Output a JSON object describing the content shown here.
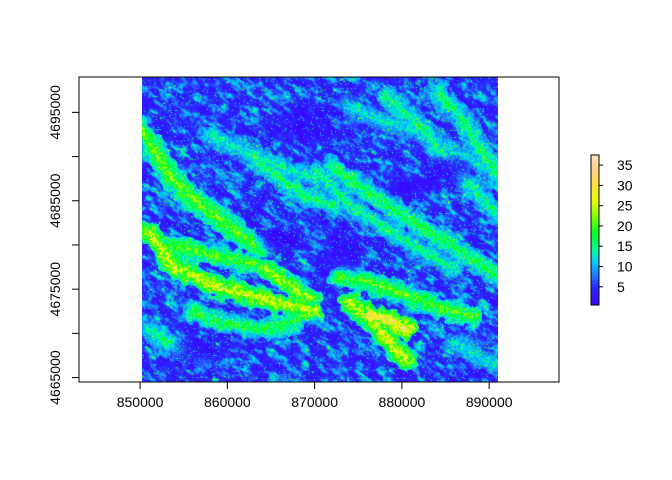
{
  "chart_data": {
    "type": "heatmap",
    "title": "",
    "xlabel": "",
    "ylabel": "",
    "xlim": [
      843000,
      898000
    ],
    "ylim": [
      4664500,
      4699000
    ],
    "raster_extent": {
      "xmin": 850200,
      "xmax": 891000,
      "ymin": 4664500,
      "ymax": 4699000
    },
    "x_ticks": [
      850000,
      860000,
      870000,
      880000,
      890000
    ],
    "x_tick_labels": [
      "850000",
      "860000",
      "870000",
      "880000",
      "890000"
    ],
    "y_ticks": [
      4665000,
      4675000,
      4685000,
      4695000
    ],
    "y_tick_labels": [
      "4665000",
      "4675000",
      "4685000",
      "4695000"
    ],
    "y_minor_ticks": [
      4670000,
      4680000,
      4690000
    ],
    "grid": false,
    "legend": {
      "placement": "right",
      "range": [
        0.5,
        37.5
      ],
      "ticks": [
        5,
        10,
        15,
        20,
        25,
        30,
        35
      ],
      "tick_labels": [
        "5",
        "10",
        "15",
        "20",
        "25",
        "30",
        "35"
      ]
    },
    "color_ramp": [
      {
        "value": 0,
        "color": "#3b00ff"
      },
      {
        "value": 5,
        "color": "#2a2cff"
      },
      {
        "value": 8,
        "color": "#1f7fff"
      },
      {
        "value": 11,
        "color": "#00c8ff"
      },
      {
        "value": 14,
        "color": "#00ff9a"
      },
      {
        "value": 18,
        "color": "#00ff2a"
      },
      {
        "value": 22,
        "color": "#7cff00"
      },
      {
        "value": 26,
        "color": "#e6ff00"
      },
      {
        "value": 30,
        "color": "#ffe040"
      },
      {
        "value": 34,
        "color": "#ffd08a"
      },
      {
        "value": 38,
        "color": "#ffe8c8"
      }
    ],
    "ridges": [
      {
        "pts": [
          [
            850200,
            4693000
          ],
          [
            853500,
            4687500
          ],
          [
            857000,
            4684500
          ],
          [
            861000,
            4681500
          ],
          [
            864000,
            4679500
          ]
        ],
        "v": 20
      },
      {
        "pts": [
          [
            851000,
            4681500
          ],
          [
            854000,
            4677500
          ],
          [
            858000,
            4675500
          ],
          [
            862000,
            4674500
          ],
          [
            866000,
            4673500
          ],
          [
            870000,
            4672500
          ]
        ],
        "v": 24
      },
      {
        "pts": [
          [
            852500,
            4680000
          ],
          [
            856000,
            4679500
          ],
          [
            860000,
            4678500
          ],
          [
            863000,
            4678000
          ]
        ],
        "v": 19
      },
      {
        "pts": [
          [
            856000,
            4672500
          ],
          [
            860000,
            4671000
          ],
          [
            864000,
            4670500
          ],
          [
            868000,
            4671500
          ]
        ],
        "v": 17
      },
      {
        "pts": [
          [
            863000,
            4690000
          ],
          [
            866000,
            4687500
          ],
          [
            869000,
            4685500
          ],
          [
            872000,
            4684500
          ]
        ],
        "v": 15
      },
      {
        "pts": [
          [
            858000,
            4692500
          ],
          [
            862000,
            4690500
          ],
          [
            866000,
            4689000
          ],
          [
            870000,
            4687500
          ]
        ],
        "v": 13
      },
      {
        "pts": [
          [
            872000,
            4689000
          ],
          [
            876000,
            4686000
          ],
          [
            880000,
            4683500
          ],
          [
            884000,
            4681000
          ],
          [
            888000,
            4678500
          ],
          [
            891000,
            4676500
          ]
        ],
        "v": 16
      },
      {
        "pts": [
          [
            870000,
            4688500
          ],
          [
            874000,
            4684500
          ],
          [
            878000,
            4682000
          ],
          [
            882000,
            4679500
          ],
          [
            886000,
            4677500
          ]
        ],
        "v": 14
      },
      {
        "pts": [
          [
            872500,
            4676500
          ],
          [
            876000,
            4676000
          ],
          [
            880000,
            4674500
          ],
          [
            884000,
            4673000
          ],
          [
            888000,
            4672000
          ]
        ],
        "v": 19
      },
      {
        "pts": [
          [
            874000,
            4673500
          ],
          [
            877000,
            4671000
          ],
          [
            879000,
            4668500
          ],
          [
            880500,
            4667000
          ]
        ],
        "v": 24
      },
      {
        "pts": [
          [
            876000,
            4672000
          ],
          [
            878500,
            4671500
          ],
          [
            880500,
            4670500
          ]
        ],
        "v": 28
      },
      {
        "pts": [
          [
            878000,
            4697000
          ],
          [
            882000,
            4693500
          ],
          [
            885000,
            4690000
          ],
          [
            888000,
            4686500
          ],
          [
            891000,
            4683500
          ]
        ],
        "v": 14
      },
      {
        "pts": [
          [
            874000,
            4695500
          ],
          [
            878000,
            4694000
          ],
          [
            882000,
            4693000
          ],
          [
            886000,
            4690500
          ],
          [
            890000,
            4688500
          ]
        ],
        "v": 12
      },
      {
        "pts": [
          [
            884000,
            4697500
          ],
          [
            887000,
            4694000
          ],
          [
            889500,
            4690000
          ],
          [
            891000,
            4688000
          ]
        ],
        "v": 15
      },
      {
        "pts": [
          [
            864000,
            4677500
          ],
          [
            867000,
            4675500
          ],
          [
            869500,
            4674000
          ]
        ],
        "v": 22
      },
      {
        "pts": [
          [
            851000,
            4670500
          ],
          [
            854000,
            4668500
          ],
          [
            857000,
            4667000
          ]
        ],
        "v": 14
      },
      {
        "pts": [
          [
            886000,
            4669000
          ],
          [
            888500,
            4667500
          ],
          [
            891000,
            4666500
          ]
        ],
        "v": 12
      }
    ],
    "basins": [
      {
        "c": [
          868500,
          4693500
        ],
        "r": [
          4500,
          2800
        ]
      },
      {
        "c": [
          885000,
          4688500
        ],
        "r": [
          3500,
          2000
        ]
      },
      {
        "c": [
          866000,
          4680500
        ],
        "r": [
          3200,
          1800
        ]
      },
      {
        "c": [
          873500,
          4679500
        ],
        "r": [
          3000,
          2800
        ]
      },
      {
        "c": [
          856500,
          4668000
        ],
        "r": [
          3500,
          2200
        ]
      },
      {
        "c": [
          880500,
          4686500
        ],
        "r": [
          3000,
          1500
        ]
      }
    ]
  }
}
